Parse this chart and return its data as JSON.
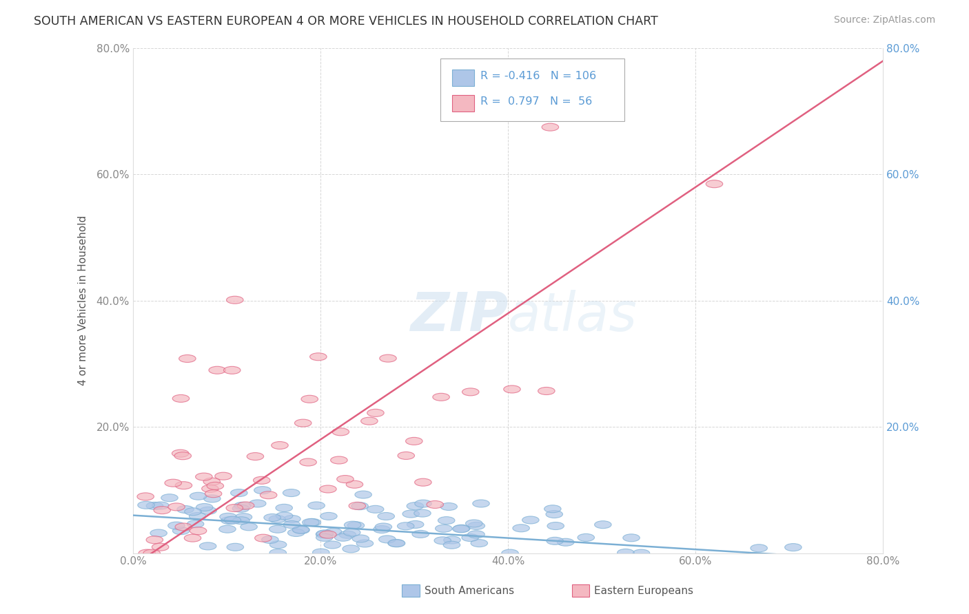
{
  "title": "SOUTH AMERICAN VS EASTERN EUROPEAN 4 OR MORE VEHICLES IN HOUSEHOLD CORRELATION CHART",
  "source": "Source: ZipAtlas.com",
  "ylabel": "4 or more Vehicles in Household",
  "xlim": [
    0.0,
    0.8
  ],
  "ylim": [
    0.0,
    0.8
  ],
  "xtick_labels": [
    "0.0%",
    "20.0%",
    "40.0%",
    "60.0%",
    "80.0%"
  ],
  "xtick_vals": [
    0.0,
    0.2,
    0.4,
    0.6,
    0.8
  ],
  "ytick_labels": [
    "20.0%",
    "40.0%",
    "60.0%",
    "80.0%"
  ],
  "ytick_vals": [
    0.2,
    0.4,
    0.6,
    0.8
  ],
  "blue_color": "#aec6e8",
  "pink_color": "#f4b8c1",
  "blue_line_color": "#7bafd4",
  "pink_line_color": "#e06080",
  "blue_scatter_face": "#aec6e8",
  "blue_scatter_edge": "#7bafd4",
  "pink_scatter_face": "#f4b8c1",
  "pink_scatter_edge": "#e06080",
  "watermark_color": "#c8ddef",
  "background_color": "#ffffff",
  "grid_color": "#cccccc",
  "blue_R": -0.416,
  "blue_N": 106,
  "pink_R": 0.797,
  "pink_N": 56,
  "title_color": "#333333",
  "source_color": "#999999",
  "axis_label_color": "#555555",
  "right_tick_color": "#5b9bd5",
  "left_tick_color": "#888888",
  "legend_text_color": "#5b9bd5"
}
